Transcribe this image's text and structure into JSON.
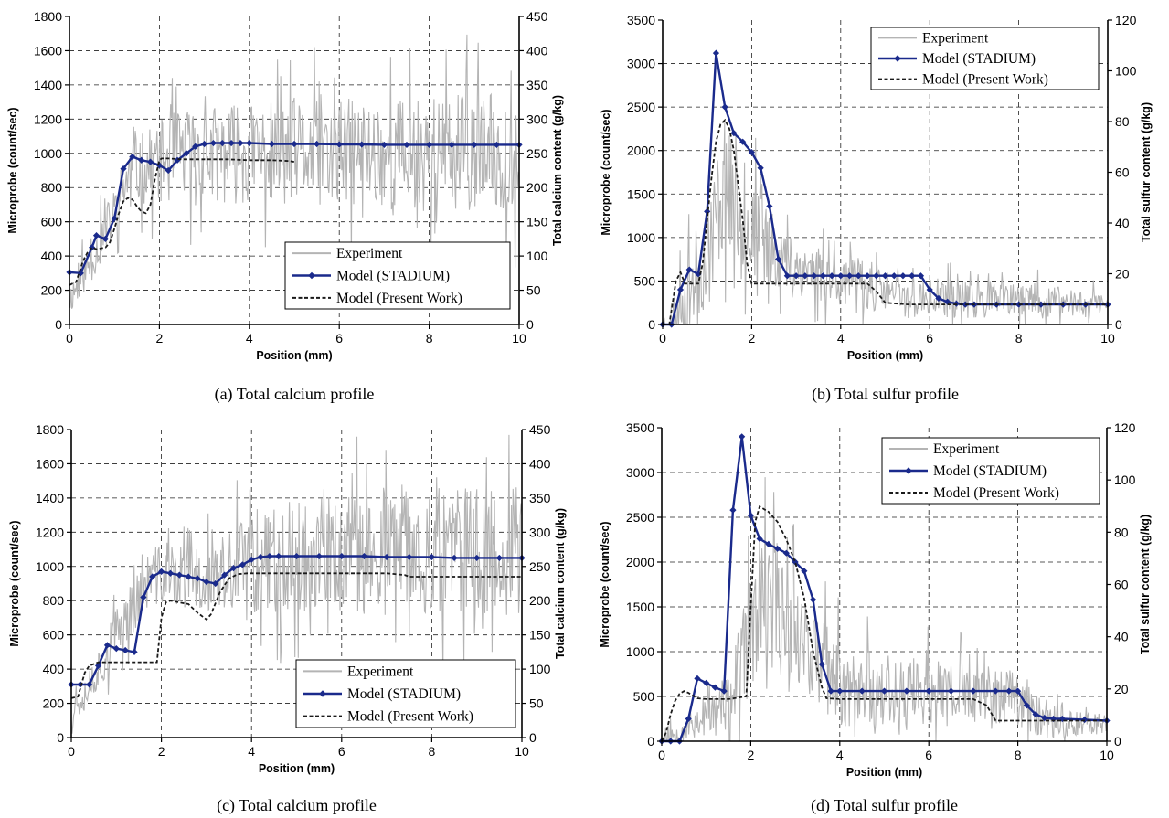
{
  "chart_data": [
    {
      "type": "line",
      "caption": "(a) Total calcium profile",
      "xlabel": "Position (mm)",
      "ylabel": "Microprobe (count/sec)",
      "y2label": "Total calcium content (g/kg)",
      "xlim": [
        0,
        10
      ],
      "ylim": [
        0,
        1800
      ],
      "y2lim": [
        0,
        450
      ],
      "xticks": [
        "0",
        "2",
        "4",
        "6",
        "8",
        "10"
      ],
      "yticks": [
        "0",
        "200",
        "400",
        "600",
        "800",
        "1000",
        "1200",
        "1400",
        "1600",
        "1800"
      ],
      "y2ticks": [
        "0",
        "50",
        "100",
        "150",
        "200",
        "250",
        "300",
        "350",
        "400",
        "450"
      ],
      "grid": true,
      "legend_position": "lower-right",
      "colors": {
        "experiment": "#b4b4b4",
        "stadium": "#1a2a8c",
        "present": "#1a1a1a"
      },
      "series": [
        {
          "name": "Experiment",
          "style": "noisy",
          "baseline": [
            [
              0,
              150
            ],
            [
              0.5,
              380
            ],
            [
              1.0,
              650
            ],
            [
              1.3,
              870
            ],
            [
              2.0,
              950
            ],
            [
              2.6,
              1000
            ],
            [
              10,
              1000
            ]
          ],
          "amplitude": [
            [
              0,
              120
            ],
            [
              1,
              200
            ],
            [
              2.5,
              350
            ],
            [
              10,
              450
            ]
          ],
          "seed": 11
        },
        {
          "name": "Model (STADIUM)",
          "style": "markers",
          "x": [
            0,
            0.25,
            0.5,
            0.6,
            0.8,
            1.0,
            1.2,
            1.4,
            1.6,
            1.8,
            2.0,
            2.2,
            2.4,
            2.6,
            2.8,
            3.0,
            3.2,
            3.4,
            3.6,
            3.8,
            4.0,
            4.5,
            5.0,
            5.5,
            6.0,
            6.5,
            7.0,
            7.5,
            8.0,
            8.5,
            9.0,
            9.5,
            10.0
          ],
          "y": [
            305,
            300,
            450,
            520,
            500,
            620,
            910,
            980,
            960,
            950,
            930,
            900,
            960,
            1000,
            1040,
            1055,
            1060,
            1060,
            1060,
            1060,
            1060,
            1055,
            1055,
            1055,
            1052,
            1052,
            1050,
            1050,
            1050,
            1050,
            1050,
            1050,
            1050
          ]
        },
        {
          "name": "Model (Present Work)",
          "style": "dashed",
          "x": [
            0,
            0.15,
            0.3,
            0.4,
            0.5,
            0.6,
            0.8,
            0.9,
            1.0,
            1.1,
            1.2,
            1.3,
            1.4,
            1.5,
            1.6,
            1.7,
            1.8,
            1.9,
            2.0,
            2.05,
            2.2,
            2.5,
            3.0,
            3.5,
            4.0,
            4.5,
            4.9,
            5.0
          ],
          "y": [
            230,
            250,
            370,
            420,
            450,
            440,
            450,
            480,
            560,
            650,
            720,
            740,
            730,
            690,
            660,
            650,
            700,
            850,
            960,
            970,
            970,
            965,
            965,
            965,
            960,
            960,
            955,
            950
          ]
        }
      ]
    },
    {
      "type": "line",
      "caption": "(b) Total sulfur profile",
      "xlabel": "Position (mm)",
      "ylabel": "Microprobe (count/sec)",
      "y2label": "Total sulfur content (g/kg)",
      "xlim": [
        0,
        10
      ],
      "ylim": [
        0,
        3500
      ],
      "y2lim": [
        0,
        120
      ],
      "xticks": [
        "0",
        "2",
        "4",
        "6",
        "8",
        "10"
      ],
      "yticks": [
        "0",
        "500",
        "1000",
        "1500",
        "2000",
        "2500",
        "3000",
        "3500"
      ],
      "y2ticks": [
        "0",
        "20",
        "40",
        "60",
        "80",
        "100",
        "120"
      ],
      "grid": true,
      "legend_position": "top-right",
      "colors": {
        "experiment": "#b4b4b4",
        "stadium": "#1a2a8c",
        "present": "#1a1a1a"
      },
      "series": [
        {
          "name": "Experiment",
          "style": "noisy",
          "baseline": [
            [
              0,
              0
            ],
            [
              0.3,
              150
            ],
            [
              1.0,
              800
            ],
            [
              1.4,
              1700
            ],
            [
              2.0,
              1100
            ],
            [
              2.8,
              700
            ],
            [
              4.5,
              450
            ],
            [
              5.5,
              300
            ],
            [
              10,
              250
            ]
          ],
          "amplitude": [
            [
              0,
              150
            ],
            [
              1,
              800
            ],
            [
              1.5,
              1000
            ],
            [
              2.5,
              500
            ],
            [
              5,
              300
            ],
            [
              10,
              200
            ]
          ],
          "seed": 23
        },
        {
          "name": "Model (STADIUM)",
          "style": "markers",
          "x": [
            0,
            0.2,
            0.4,
            0.6,
            0.8,
            1.0,
            1.2,
            1.4,
            1.6,
            1.8,
            2.0,
            2.2,
            2.4,
            2.6,
            2.8,
            3.0,
            3.2,
            3.4,
            3.6,
            3.8,
            4.0,
            4.2,
            4.4,
            4.6,
            4.8,
            5.0,
            5.2,
            5.4,
            5.6,
            5.8,
            6.0,
            6.2,
            6.4,
            6.6,
            6.8,
            7.0,
            7.5,
            8.0,
            8.5,
            9.0,
            9.5,
            10.0
          ],
          "y": [
            0,
            0,
            400,
            630,
            580,
            1300,
            3120,
            2500,
            2200,
            2100,
            1980,
            1800,
            1360,
            750,
            560,
            560,
            560,
            560,
            560,
            560,
            560,
            560,
            560,
            560,
            560,
            560,
            560,
            560,
            560,
            560,
            400,
            300,
            260,
            240,
            230,
            230,
            230,
            230,
            230,
            230,
            230,
            230
          ]
        },
        {
          "name": "Model (Present Work)",
          "style": "dashed",
          "x": [
            0,
            0.15,
            0.3,
            0.4,
            0.5,
            0.8,
            0.9,
            1.0,
            1.1,
            1.2,
            1.3,
            1.4,
            1.5,
            1.6,
            1.7,
            1.8,
            1.9,
            2.0,
            2.5,
            3.0,
            4.0,
            4.6,
            4.8,
            5.0,
            5.5,
            6.0,
            7.0,
            8.0,
            9.0,
            10.0
          ],
          "y": [
            0,
            0,
            500,
            600,
            470,
            470,
            700,
            1200,
            1700,
            2100,
            2300,
            2350,
            2250,
            2000,
            1600,
            1200,
            700,
            470,
            470,
            470,
            470,
            470,
            380,
            250,
            230,
            230,
            230,
            230,
            230,
            230
          ]
        }
      ]
    },
    {
      "type": "line",
      "caption": "(c) Total calcium profile",
      "xlabel": "Position (mm)",
      "ylabel": "Microprobe (count/sec)",
      "y2label": "Total calcium content (g/kg)",
      "xlim": [
        0,
        10
      ],
      "ylim": [
        0,
        1800
      ],
      "y2lim": [
        0,
        450
      ],
      "xticks": [
        "0",
        "2",
        "4",
        "6",
        "8",
        "10"
      ],
      "yticks": [
        "0",
        "200",
        "400",
        "600",
        "800",
        "1000",
        "1200",
        "1400",
        "1600",
        "1800"
      ],
      "y2ticks": [
        "0",
        "50",
        "100",
        "150",
        "200",
        "250",
        "300",
        "350",
        "400",
        "450"
      ],
      "grid": true,
      "legend_position": "lower-right",
      "colors": {
        "experiment": "#b4b4b4",
        "stadium": "#1a2a8c",
        "present": "#1a1a1a"
      },
      "series": [
        {
          "name": "Experiment",
          "style": "noisy",
          "baseline": [
            [
              0,
              150
            ],
            [
              0.6,
              400
            ],
            [
              1.2,
              700
            ],
            [
              1.8,
              950
            ],
            [
              3.0,
              920
            ],
            [
              3.6,
              950
            ],
            [
              4.0,
              1050
            ],
            [
              10,
              1100
            ]
          ],
          "amplitude": [
            [
              0,
              120
            ],
            [
              1,
              200
            ],
            [
              3,
              250
            ],
            [
              4,
              400
            ],
            [
              10,
              500
            ]
          ],
          "seed": 37
        },
        {
          "name": "Model (STADIUM)",
          "style": "markers",
          "x": [
            0,
            0.2,
            0.4,
            0.6,
            0.8,
            1.0,
            1.2,
            1.4,
            1.6,
            1.8,
            2.0,
            2.2,
            2.4,
            2.6,
            2.8,
            3.0,
            3.2,
            3.4,
            3.6,
            3.8,
            4.0,
            4.2,
            4.4,
            4.6,
            5.0,
            5.5,
            6.0,
            6.5,
            7.0,
            7.5,
            8.0,
            8.5,
            9.0,
            9.5,
            10.0
          ],
          "y": [
            310,
            310,
            310,
            420,
            540,
            520,
            510,
            500,
            820,
            940,
            970,
            960,
            950,
            940,
            930,
            910,
            900,
            950,
            990,
            1010,
            1040,
            1055,
            1060,
            1060,
            1060,
            1060,
            1060,
            1060,
            1055,
            1055,
            1055,
            1050,
            1050,
            1050,
            1050
          ]
        },
        {
          "name": "Model (Present Work)",
          "style": "dashed",
          "x": [
            0,
            0.15,
            0.3,
            0.4,
            0.6,
            1.0,
            1.5,
            1.9,
            2.0,
            2.1,
            2.2,
            2.6,
            2.8,
            3.0,
            3.1,
            3.3,
            3.5,
            3.7,
            3.9,
            4.0,
            4.5,
            5.0,
            6.0,
            7.0,
            7.4,
            7.5,
            8.0,
            9.0,
            10.0
          ],
          "y": [
            230,
            240,
            380,
            420,
            440,
            440,
            440,
            440,
            700,
            790,
            800,
            780,
            730,
            690,
            720,
            850,
            930,
            955,
            960,
            960,
            960,
            960,
            960,
            960,
            950,
            940,
            940,
            940,
            940
          ]
        }
      ]
    },
    {
      "type": "line",
      "caption": "(d) Total sulfur profile",
      "xlabel": "Position (mm)",
      "ylabel": "Microprobe (count/sec)",
      "y2label": "Total sulfur content (g/kg)",
      "xlim": [
        0,
        10
      ],
      "ylim": [
        0,
        3500
      ],
      "y2lim": [
        0,
        120
      ],
      "xticks": [
        "0",
        "2",
        "4",
        "6",
        "8",
        "10"
      ],
      "yticks": [
        "0",
        "500",
        "1000",
        "1500",
        "2000",
        "2500",
        "3000",
        "3500"
      ],
      "y2ticks": [
        "0",
        "20",
        "40",
        "60",
        "80",
        "100",
        "120"
      ],
      "grid": true,
      "legend_position": "top-right",
      "colors": {
        "experiment": "#b4b4b4",
        "stadium": "#1a2a8c",
        "present": "#1a1a1a"
      },
      "series": [
        {
          "name": "Experiment",
          "style": "noisy",
          "baseline": [
            [
              0,
              0
            ],
            [
              0.5,
              150
            ],
            [
              1.5,
              400
            ],
            [
              2.0,
              1200
            ],
            [
              2.6,
              1600
            ],
            [
              3.4,
              1000
            ],
            [
              4.0,
              600
            ],
            [
              8.0,
              500
            ],
            [
              8.5,
              250
            ],
            [
              10,
              200
            ]
          ],
          "amplitude": [
            [
              0,
              100
            ],
            [
              1.5,
              400
            ],
            [
              2.2,
              1000
            ],
            [
              3.2,
              700
            ],
            [
              5,
              500
            ],
            [
              8,
              400
            ],
            [
              10,
              150
            ]
          ],
          "seed": 53
        },
        {
          "name": "Model (STADIUM)",
          "style": "markers",
          "x": [
            0,
            0.2,
            0.4,
            0.6,
            0.8,
            1.0,
            1.2,
            1.4,
            1.6,
            1.8,
            2.0,
            2.2,
            2.4,
            2.6,
            2.8,
            3.0,
            3.2,
            3.4,
            3.6,
            3.8,
            4.0,
            4.5,
            5.0,
            5.5,
            6.0,
            6.5,
            7.0,
            7.5,
            7.8,
            8.0,
            8.2,
            8.4,
            8.6,
            8.8,
            9.0,
            9.5,
            10.0
          ],
          "y": [
            0,
            0,
            0,
            250,
            700,
            650,
            600,
            560,
            2580,
            3400,
            2520,
            2260,
            2200,
            2150,
            2100,
            2000,
            1900,
            1580,
            860,
            560,
            560,
            560,
            560,
            560,
            560,
            560,
            560,
            560,
            560,
            560,
            400,
            300,
            260,
            250,
            250,
            240,
            230
          ]
        },
        {
          "name": "Model (Present Work)",
          "style": "dashed",
          "x": [
            0,
            0.1,
            0.2,
            0.3,
            0.4,
            0.5,
            0.6,
            0.8,
            1.0,
            1.5,
            1.9,
            2.0,
            2.1,
            2.2,
            2.4,
            2.6,
            2.8,
            3.0,
            3.2,
            3.4,
            3.6,
            3.7,
            4.0,
            5.0,
            6.0,
            7.0,
            7.3,
            7.5,
            8.0,
            9.0,
            10.0
          ],
          "y": [
            0,
            100,
            300,
            450,
            530,
            560,
            540,
            480,
            470,
            470,
            500,
            1500,
            2450,
            2620,
            2560,
            2450,
            2250,
            2000,
            1600,
            1000,
            600,
            480,
            470,
            470,
            470,
            470,
            400,
            230,
            230,
            230,
            230
          ]
        }
      ]
    }
  ]
}
